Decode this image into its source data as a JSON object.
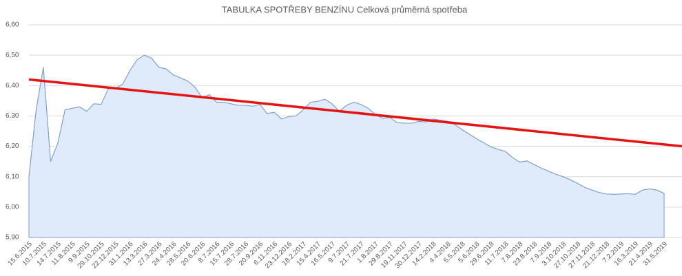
{
  "chart_data": {
    "type": "area",
    "title": "TABULKA SPOTŘEBY BENZÍNU  Celková průměrná spotřeba",
    "categories": [
      "15.6.2015",
      null,
      "10.7.2015",
      null,
      "14.7.2015",
      null,
      "11.8.2015",
      null,
      "9.9.2015",
      null,
      "29.10.2015",
      null,
      "22.12.2015",
      null,
      "31.1.2016",
      null,
      "13.3.2016",
      null,
      "27.3.2016",
      null,
      "24.4.2016",
      null,
      "28.5.2016",
      null,
      "20.6.2016",
      null,
      "8.7.2016",
      null,
      "15.7.2016",
      null,
      "28.7.2016",
      null,
      "20.9.2016",
      null,
      "6.11.2016",
      null,
      "23.12.2016",
      null,
      "18.2.2017",
      null,
      "15.4.2017",
      null,
      "16.5.2017",
      null,
      "9.7.2017",
      null,
      "21.7.2017",
      null,
      "1.8.2017",
      null,
      "29.8.2017",
      null,
      "19.11.2017",
      null,
      "30.12.2017",
      null,
      "14.2.2018",
      null,
      "4.4.2018",
      null,
      "5.5.2018",
      null,
      "5.6.2018",
      null,
      "29.6.2018",
      null,
      "11.7.2018",
      null,
      "7.8.2018",
      null,
      "23.8.2018",
      null,
      "7.9.2018",
      null,
      "3.10.2018",
      null,
      "27.10.2018",
      null,
      "27.11.2018",
      null,
      "21.12.2018",
      null,
      "7.2.2019",
      null,
      "16.3.2019",
      null,
      "21.4.2019",
      null,
      "31.5.2019",
      null,
      null
    ],
    "values": [
      6.1,
      6.32,
      6.46,
      6.15,
      6.21,
      6.32,
      6.325,
      6.33,
      6.315,
      6.34,
      6.338,
      6.39,
      6.39,
      6.405,
      6.45,
      6.485,
      6.5,
      6.49,
      6.46,
      6.455,
      6.435,
      6.425,
      6.415,
      6.395,
      6.36,
      6.37,
      6.345,
      6.345,
      6.34,
      6.335,
      6.335,
      6.332,
      6.338,
      6.308,
      6.312,
      6.29,
      6.298,
      6.3,
      6.32,
      6.345,
      6.348,
      6.355,
      6.34,
      6.315,
      6.335,
      6.345,
      6.338,
      6.325,
      6.305,
      6.292,
      6.295,
      6.278,
      6.276,
      6.276,
      6.282,
      6.28,
      6.29,
      6.286,
      6.282,
      6.272,
      6.255,
      6.24,
      6.225,
      6.212,
      6.198,
      6.19,
      6.183,
      6.163,
      6.148,
      6.152,
      6.14,
      6.128,
      6.118,
      6.108,
      6.1,
      6.09,
      6.078,
      6.065,
      6.056,
      6.048,
      6.043,
      6.042,
      6.043,
      6.044,
      6.042,
      6.056,
      6.06,
      6.056,
      6.045,
      null,
      null
    ],
    "color": "#7c9dc8",
    "fill": "#dfeafa",
    "trendline": {
      "color": "#e31414",
      "values": [
        6.42,
        6.2
      ]
    },
    "ylim": [
      5.9,
      6.6
    ],
    "yticks": [
      {
        "value": 5.9,
        "label": "5,90"
      },
      {
        "value": 6.0,
        "label": "6,00"
      },
      {
        "value": 6.1,
        "label": "6,10"
      },
      {
        "value": 6.2,
        "label": "6,20"
      },
      {
        "value": 6.3,
        "label": "6,30"
      },
      {
        "value": 6.4,
        "label": "6,40"
      },
      {
        "value": 6.5,
        "label": "6,50"
      },
      {
        "value": 6.6,
        "label": "6,60"
      }
    ],
    "grid": true
  }
}
